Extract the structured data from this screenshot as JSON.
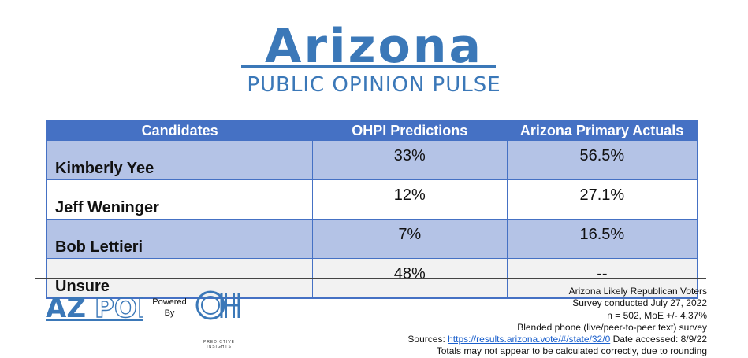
{
  "header": {
    "title": "Arizona",
    "subtitle": "PUBLIC OPINION PULSE"
  },
  "table": {
    "columns": [
      "Candidates",
      "OHPI Predictions",
      "Arizona Primary Actuals"
    ],
    "rows": [
      {
        "candidate": "Kimberly Yee",
        "prediction": "33%",
        "actual": "56.5%"
      },
      {
        "candidate": "Jeff Weninger",
        "prediction": "12%",
        "actual": "27.1%"
      },
      {
        "candidate": "Bob Lettieri",
        "prediction": "7%",
        "actual": "16.5%"
      },
      {
        "candidate": "Unsure",
        "prediction": "48%",
        "actual": "--"
      }
    ]
  },
  "footer": {
    "logo_text": "AZPOP",
    "powered_by_line1": "Powered",
    "powered_by_line2": "By",
    "oh_logo_text": "OH",
    "oh_caption_line1": "PREDICTIVE",
    "oh_caption_line2": "INSIGHTS",
    "notes": {
      "line1": "Arizona Likely Republican Voters",
      "line2": "Survey conducted July 27, 2022",
      "line3": "n = 502, MoE +/- 4.37%",
      "line4": "Blended phone (live/peer-to-peer text) survey",
      "sources_label": "Sources: ",
      "sources_link": "https://results.arizona.vote/#/state/32/0",
      "date_accessed": " Date accessed: 8/9/22",
      "line6": "Totals may not appear to be calculated correctly, due to rounding"
    }
  },
  "colors": {
    "brand_blue": "#3b78b8",
    "table_header": "#4571c4",
    "row_shade": "#b4c3e6"
  }
}
